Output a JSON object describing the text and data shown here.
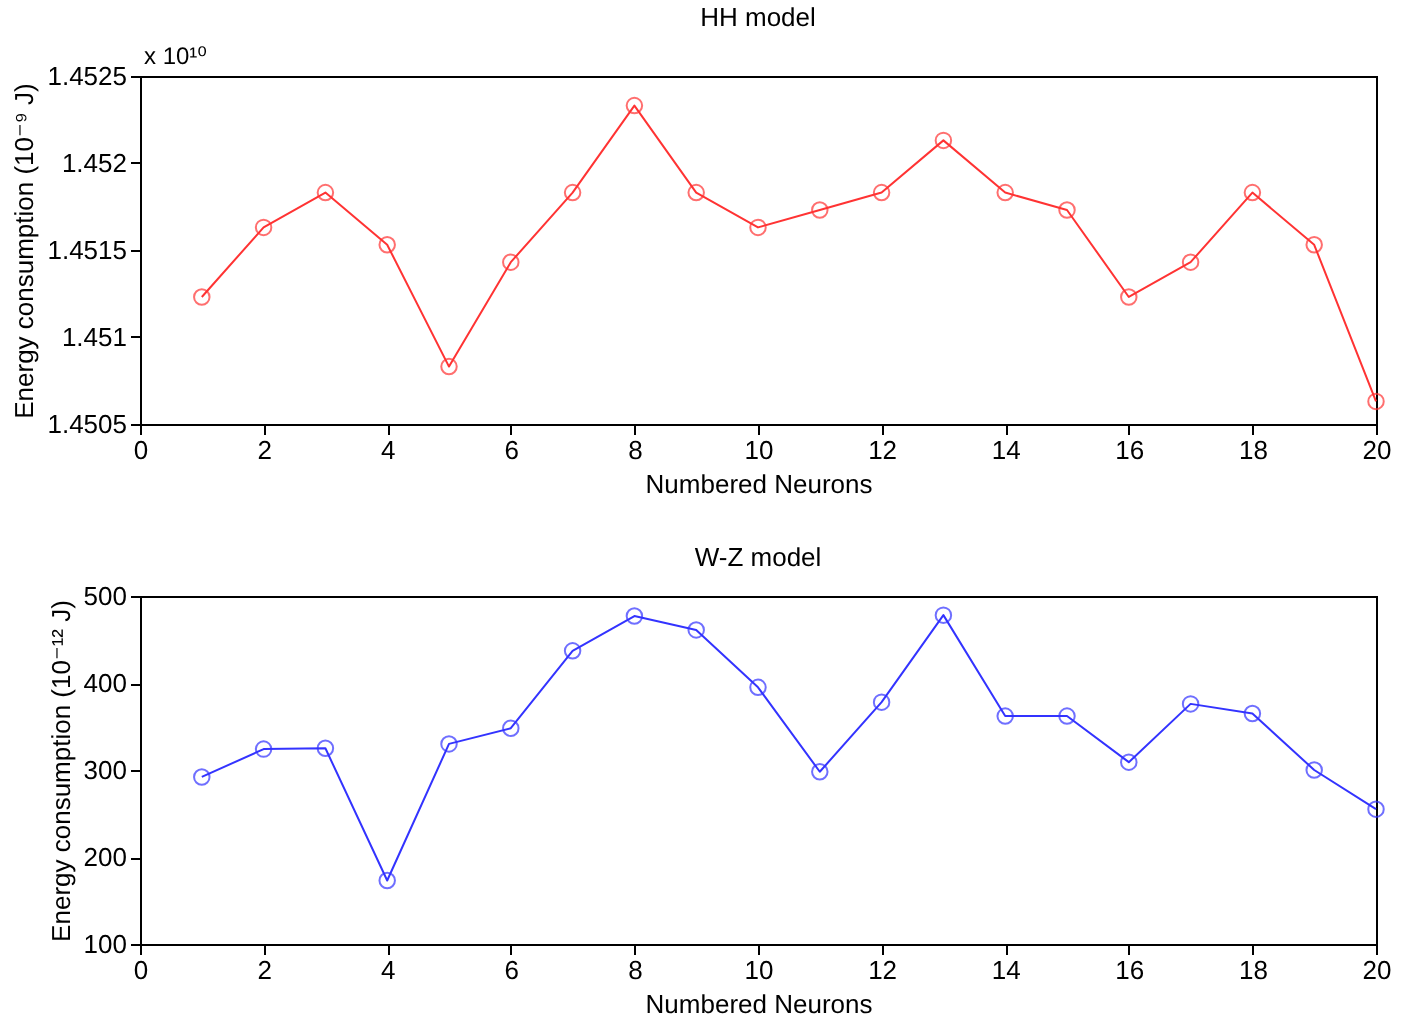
{
  "chart_data": [
    {
      "type": "line",
      "title": "HH model",
      "xlabel": "Numbered Neurons",
      "ylabel": "Energy consumption (10⁻⁹ J)",
      "annotations": [
        "x 10¹⁰"
      ],
      "x": [
        1,
        2,
        3,
        4,
        5,
        6,
        7,
        8,
        9,
        10,
        11,
        12,
        13,
        14,
        15,
        16,
        17,
        18,
        19,
        20
      ],
      "series": [
        {
          "color": "#ff3333",
          "values": [
            1.45123,
            1.45163,
            1.45183,
            1.45153,
            1.45083,
            1.45143,
            1.45183,
            1.45233,
            1.45183,
            1.45163,
            1.45173,
            1.45183,
            1.45213,
            1.45183,
            1.45173,
            1.45123,
            1.45143,
            1.45183,
            1.45153,
            1.45063
          ]
        }
      ],
      "xlim": [
        0,
        20
      ],
      "xticks": [
        0,
        2,
        4,
        6,
        8,
        10,
        12,
        14,
        16,
        18,
        20
      ],
      "ylim": [
        1.4505,
        1.4525
      ],
      "yticks": [
        1.4505,
        1.451,
        1.4515,
        1.452,
        1.4525
      ],
      "grid": false,
      "marker": "circle",
      "line_style": "solid"
    },
    {
      "type": "line",
      "title": "W-Z model",
      "xlabel": "Numbered Neurons",
      "ylabel": "Energy consumption (10⁻¹² J)",
      "x": [
        1,
        2,
        3,
        4,
        5,
        6,
        7,
        8,
        9,
        10,
        11,
        12,
        13,
        14,
        15,
        16,
        17,
        18,
        19,
        20
      ],
      "series": [
        {
          "color": "#3333ff",
          "values": [
            292,
            324,
            325,
            173,
            330,
            348,
            437,
            477,
            461,
            395,
            298,
            378,
            478,
            362,
            362,
            309,
            376,
            365,
            300,
            255
          ]
        }
      ],
      "xlim": [
        0,
        20
      ],
      "xticks": [
        0,
        2,
        4,
        6,
        8,
        10,
        12,
        14,
        16,
        18,
        20
      ],
      "ylim": [
        100,
        500
      ],
      "yticks": [
        100,
        200,
        300,
        400,
        500
      ],
      "grid": false,
      "marker": "circle",
      "line_style": "solid"
    }
  ]
}
